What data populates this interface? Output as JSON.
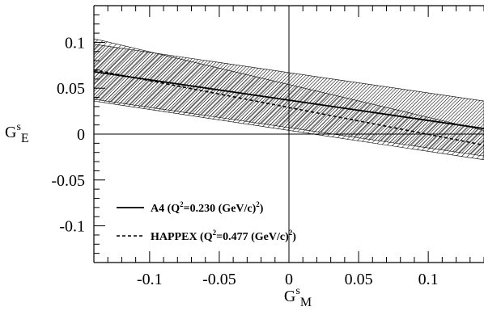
{
  "chart_data": {
    "type": "line",
    "xlim": [
      -0.14,
      0.14
    ],
    "ylim": [
      -0.14,
      0.14
    ],
    "xticks": [
      -0.1,
      -0.05,
      0,
      0.05,
      0.1
    ],
    "xtick_labels": [
      "-0.1",
      "-0.05",
      "0",
      "0.05",
      "0.1"
    ],
    "yticks": [
      -0.1,
      -0.05,
      0,
      0.05,
      0.1
    ],
    "ytick_labels": [
      "-0.1",
      "-0.05",
      "0",
      "0.05",
      "0.1"
    ],
    "xlabel": {
      "main": "G",
      "sup": "s",
      "sub": "M"
    },
    "ylabel": {
      "main": "G",
      "sup": "s",
      "sub": "E"
    },
    "grid": false,
    "zero_lines": true,
    "legend_position": "bottom-left",
    "series": [
      {
        "name": "A4",
        "legend": {
          "pre": "A4 (Q",
          "sup1": "2",
          "mid": "=0.230 (GeV/c)",
          "sup2": "2",
          "post": ")"
        },
        "line_style": "solid",
        "x": [
          -0.14,
          0.14
        ],
        "y": [
          0.068,
          0.006
        ],
        "band": {
          "x": [
            -0.14,
            0.14
          ],
          "upper": [
            0.098,
            0.036
          ],
          "lower": [
            0.038,
            -0.024
          ],
          "fill": "hatch-dense"
        }
      },
      {
        "name": "HAPPEX",
        "legend": {
          "pre": "HAPPEX (Q",
          "sup1": "2",
          "mid": "=0.477 (GeV/c)",
          "sup2": "2",
          "post": ")"
        },
        "line_style": "dashed",
        "x": [
          -0.14,
          0.14
        ],
        "y": [
          0.07,
          -0.012
        ],
        "band": {
          "x": [
            -0.14,
            0.14
          ],
          "upper": [
            0.104,
            0.004
          ],
          "lower": [
            0.036,
            -0.028
          ],
          "fill": "hatch-sparse"
        }
      }
    ]
  }
}
